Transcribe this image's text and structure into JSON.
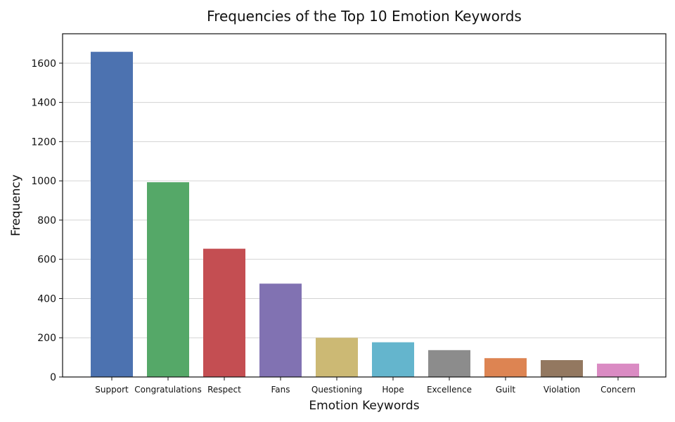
{
  "chart_data": {
    "type": "bar",
    "title": "Frequencies of the Top 10 Emotion Keywords",
    "xlabel": "Emotion Keywords",
    "ylabel": "Frequency",
    "categories": [
      "Support",
      "Congratulations",
      "Respect",
      "Fans",
      "Questioning",
      "Hope",
      "Excellence",
      "Guilt",
      "Violation",
      "Concern"
    ],
    "values": [
      1658,
      993,
      654,
      476,
      200,
      177,
      137,
      96,
      86,
      68
    ],
    "colors": [
      "#4c72b0",
      "#55a868",
      "#c44e52",
      "#8172b2",
      "#ccb974",
      "#64b5cd",
      "#8c8c8c",
      "#dd8452",
      "#937860",
      "#da8bc3"
    ],
    "yticks": [
      0,
      200,
      400,
      600,
      800,
      1000,
      1200,
      1400,
      1600
    ],
    "ylim": [
      0,
      1750
    ],
    "grid": true
  }
}
